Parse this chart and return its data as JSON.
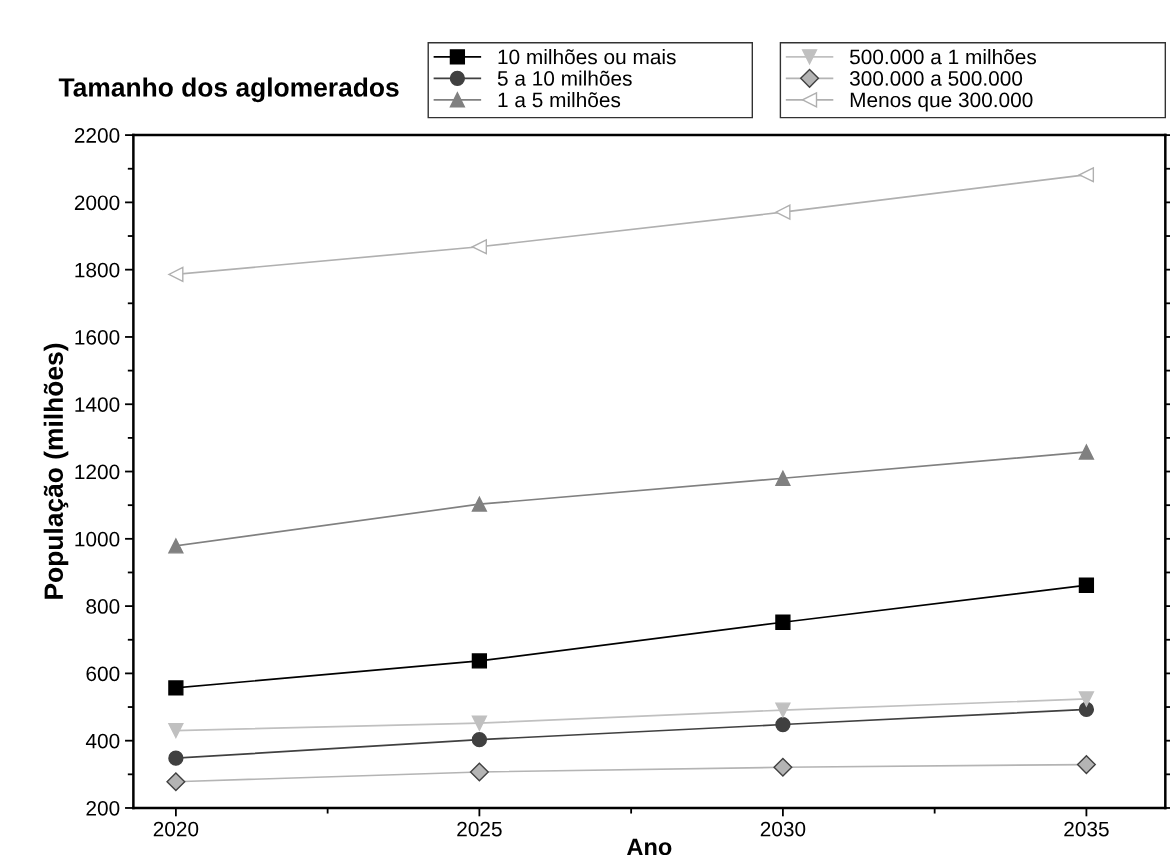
{
  "chart_data": {
    "type": "line",
    "xlabel": "Ano",
    "ylabel": "População (milhões)",
    "legend_title": "Tamanho dos aglomerados",
    "legend": "top",
    "x": [
      2020,
      2025,
      2030,
      2035
    ],
    "xlim": [
      2019.3,
      2036.3
    ],
    "xticks": [
      2020,
      2025,
      2030,
      2035
    ],
    "ylim": [
      200,
      2200
    ],
    "yticks": [
      200,
      400,
      600,
      800,
      1000,
      1200,
      1400,
      1600,
      1800,
      2000,
      2200
    ],
    "grid": false,
    "line_style": "solid",
    "series": [
      {
        "name": "10 milhões ou mais",
        "color": "#000000",
        "marker": "square",
        "values": [
          557,
          637,
          752,
          862
        ]
      },
      {
        "name": "5 a 10 milhões",
        "color": "#404040",
        "marker": "circle",
        "values": [
          348,
          403,
          448,
          493
        ]
      },
      {
        "name": "1 a 5 milhões",
        "color": "#808080",
        "marker": "triangle",
        "values": [
          979,
          1103,
          1180,
          1258
        ]
      },
      {
        "name": "500.000 a 1 milhões",
        "color": "#c0c0c0",
        "marker": "triangle_down",
        "values": [
          430,
          452,
          491,
          524
        ]
      },
      {
        "name": "300.000 a 500.000",
        "color": "#b4b4b4",
        "marker": "diamond",
        "values": [
          278,
          307,
          321,
          329
        ]
      },
      {
        "name": "Menos que 300.000",
        "color": "#b0b0b0",
        "marker": "triangle_left",
        "values": [
          1786,
          1868,
          1971,
          2082
        ]
      }
    ]
  }
}
